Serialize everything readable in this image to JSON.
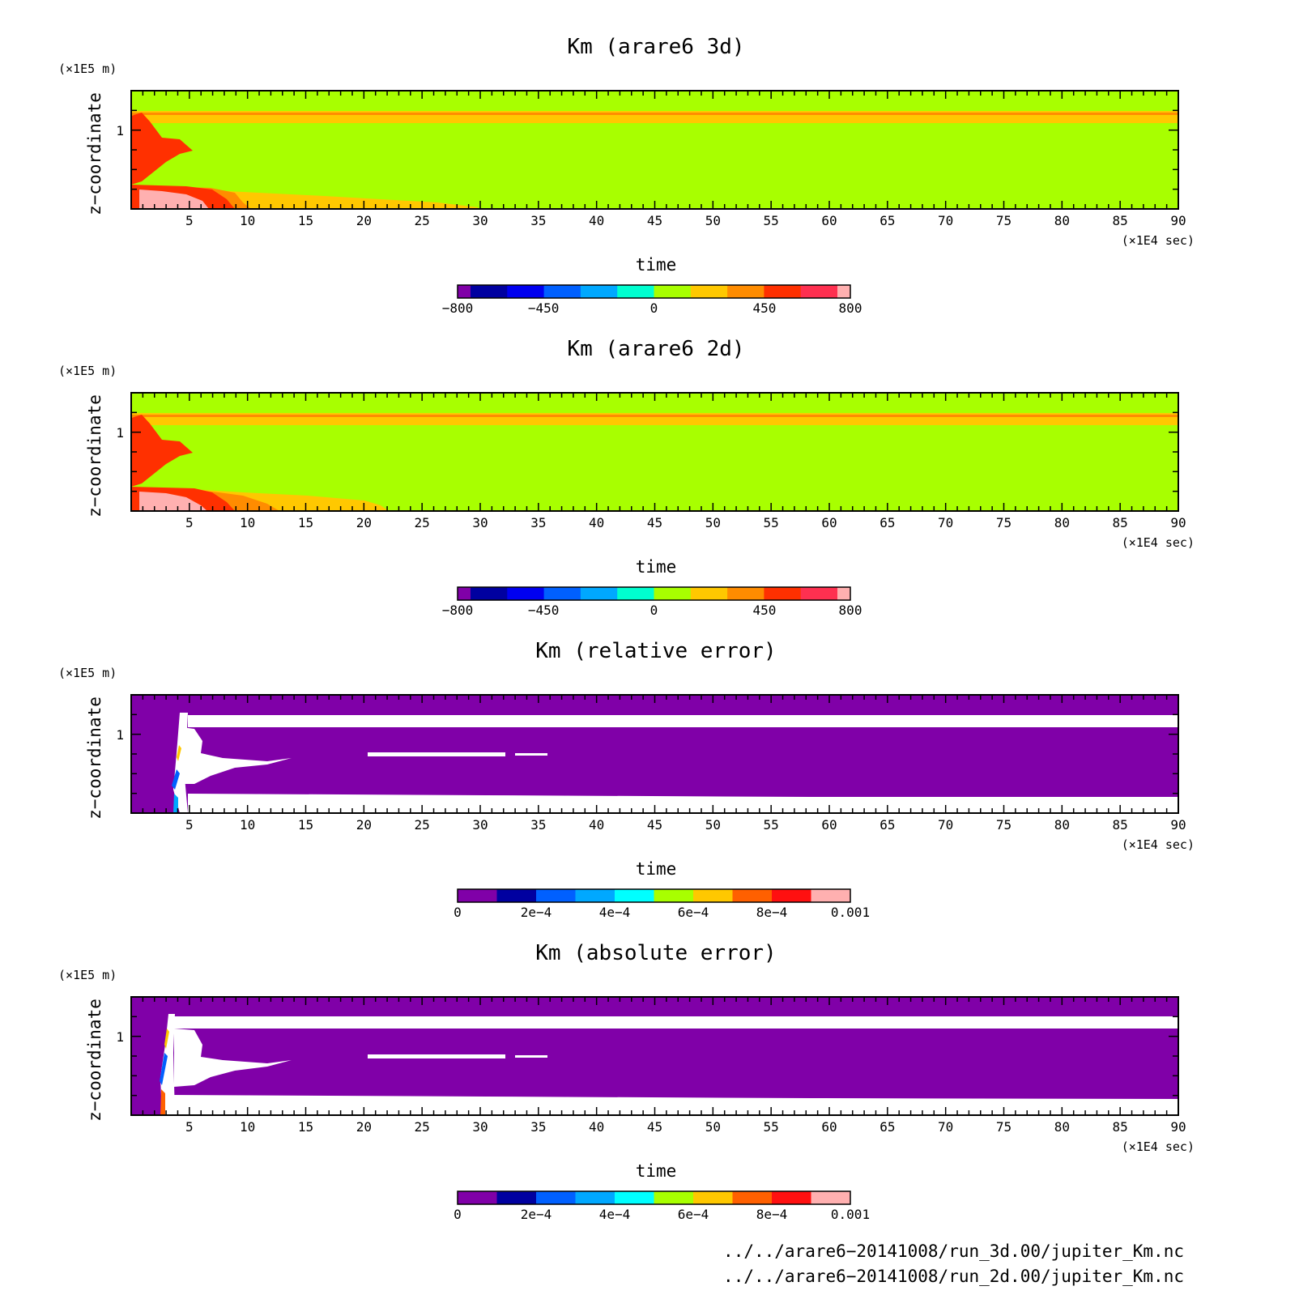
{
  "colors": {
    "levels_km": [
      "#8000a8",
      "#0000a0",
      "#0000f0",
      "#0060ff",
      "#00a8ff",
      "#00ffd0",
      "#a8ff00",
      "#ffc800",
      "#ff8c00",
      "#ff3000",
      "#ff3050",
      "#ffb0b0"
    ],
    "levels_err": [
      "#8000a8",
      "#0000a0",
      "#0060ff",
      "#00a8ff",
      "#00ffff",
      "#a8ff00",
      "#ffc800",
      "#ff6000",
      "#ff1010",
      "#ffb0b0"
    ]
  },
  "chart_data": [
    {
      "type": "heatmap",
      "title": "Km (arare6 3d)",
      "xlabel": "time",
      "ylabel": "z−coordinate",
      "xunit": "(×1E4 sec)",
      "yunit": "(×1E5 m)",
      "xlim": [
        0,
        90
      ],
      "ylim": [
        0,
        1.5
      ],
      "xticks": [
        "5",
        "10",
        "15",
        "20",
        "25",
        "30",
        "35",
        "40",
        "45",
        "50",
        "55",
        "60",
        "65",
        "70",
        "75",
        "80",
        "85",
        "90"
      ],
      "yticks": [
        "1"
      ],
      "colorbar": {
        "ticks": [
          "−800",
          "−450",
          "0",
          "450",
          "800"
        ],
        "range": [
          -800,
          800
        ]
      }
    },
    {
      "type": "heatmap",
      "title": "Km (arare6 2d)",
      "xlabel": "time",
      "ylabel": "z−coordinate",
      "xunit": "(×1E4 sec)",
      "yunit": "(×1E5 m)",
      "xlim": [
        0,
        90
      ],
      "ylim": [
        0,
        1.5
      ],
      "xticks": [
        "5",
        "10",
        "15",
        "20",
        "25",
        "30",
        "35",
        "40",
        "45",
        "50",
        "55",
        "60",
        "65",
        "70",
        "75",
        "80",
        "85",
        "90"
      ],
      "yticks": [
        "1"
      ],
      "colorbar": {
        "ticks": [
          "−800",
          "−450",
          "0",
          "450",
          "800"
        ],
        "range": [
          -800,
          800
        ]
      }
    },
    {
      "type": "heatmap",
      "title": "Km (relative error)",
      "xlabel": "time",
      "ylabel": "z−coordinate",
      "xunit": "(×1E4 sec)",
      "yunit": "(×1E5 m)",
      "xlim": [
        0,
        90
      ],
      "ylim": [
        0,
        1.5
      ],
      "xticks": [
        "5",
        "10",
        "15",
        "20",
        "25",
        "30",
        "35",
        "40",
        "45",
        "50",
        "55",
        "60",
        "65",
        "70",
        "75",
        "80",
        "85",
        "90"
      ],
      "yticks": [
        "1"
      ],
      "colorbar": {
        "ticks": [
          "0",
          "2e−4",
          "4e−4",
          "6e−4",
          "8e−4",
          "0.001"
        ],
        "range": [
          0,
          0.001
        ]
      }
    },
    {
      "type": "heatmap",
      "title": "Km (absolute error)",
      "xlabel": "time",
      "ylabel": "z−coordinate",
      "xunit": "(×1E4 sec)",
      "yunit": "(×1E5 m)",
      "xlim": [
        0,
        90
      ],
      "ylim": [
        0,
        1.5
      ],
      "xticks": [
        "5",
        "10",
        "15",
        "20",
        "25",
        "30",
        "35",
        "40",
        "45",
        "50",
        "55",
        "60",
        "65",
        "70",
        "75",
        "80",
        "85",
        "90"
      ],
      "yticks": [
        "1"
      ],
      "colorbar": {
        "ticks": [
          "0",
          "2e−4",
          "4e−4",
          "6e−4",
          "8e−4",
          "0.001"
        ],
        "range": [
          0,
          0.001
        ]
      }
    }
  ],
  "footer": {
    "file1": "../../arare6−20141008/run_3d.00/jupiter_Km.nc",
    "file2": "../../arare6−20141008/run_2d.00/jupiter_Km.nc"
  }
}
